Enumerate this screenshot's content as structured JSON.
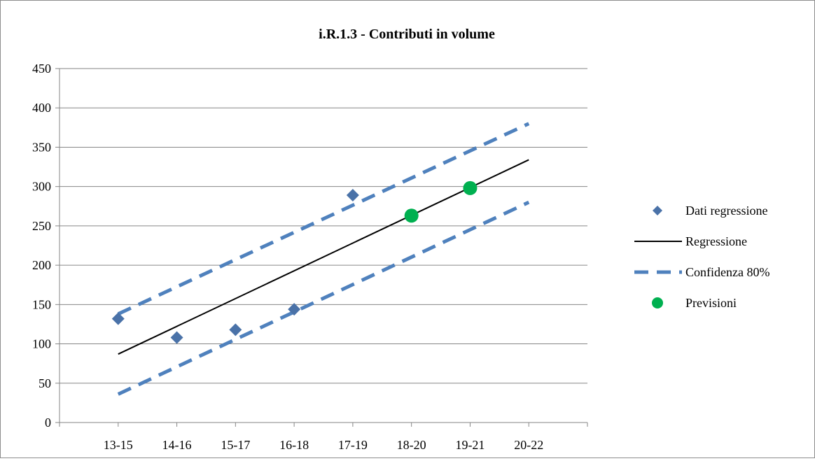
{
  "chart_data": {
    "type": "scatter",
    "title": "i.R.1.3 - Contributi in volume",
    "xlabel": "",
    "ylabel": "",
    "categories": [
      "13-15",
      "14-16",
      "15-17",
      "16-18",
      "17-19",
      "18-20",
      "19-21",
      "20-22"
    ],
    "ylim": [
      0,
      450
    ],
    "yticks": [
      0,
      50,
      100,
      150,
      200,
      250,
      300,
      350,
      400,
      450
    ],
    "grid": true,
    "legend_position": "right",
    "series": [
      {
        "name": "Dati regressione",
        "kind": "marker-diamond",
        "color": "#4a72a8",
        "points": [
          [
            "13-15",
            132
          ],
          [
            "14-16",
            108
          ],
          [
            "15-17",
            118
          ],
          [
            "16-18",
            144
          ],
          [
            "17-19",
            289
          ]
        ]
      },
      {
        "name": "Regressione",
        "kind": "line-solid",
        "color": "#000000",
        "points": [
          [
            "13-15",
            87
          ],
          [
            "20-22",
            334
          ]
        ]
      },
      {
        "name": "Confidenza 80%",
        "kind": "line-dashed",
        "color": "#4f81bd",
        "upper": [
          [
            "13-15",
            138
          ],
          [
            "20-22",
            380
          ]
        ],
        "lower": [
          [
            "13-15",
            36
          ],
          [
            "20-22",
            280
          ]
        ]
      },
      {
        "name": "Previsioni",
        "kind": "marker-circle",
        "color": "#00b050",
        "points": [
          [
            "18-20",
            263
          ],
          [
            "19-21",
            298
          ]
        ]
      }
    ]
  }
}
